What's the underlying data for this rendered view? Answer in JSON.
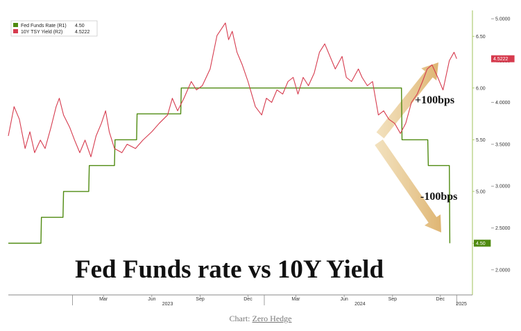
{
  "chart_data": {
    "type": "line",
    "title": "Fed Funds rate vs 10Y Yield",
    "x_ticks": [
      "Mar",
      "Jun",
      "Sep",
      "Dec",
      "Mar",
      "Jun",
      "Sep",
      "Dec"
    ],
    "x_years": [
      "2023",
      "2024",
      "2025"
    ],
    "y_left_ticks": [
      "6.50",
      "6.00",
      "5.50",
      "5.00",
      "4.50"
    ],
    "y_right_ticks": [
      "5.0000",
      "4.5000",
      "4.0000",
      "3.5000",
      "3.0000",
      "2.5000",
      "2.0000"
    ],
    "y_left_range": [
      4.0,
      6.75
    ],
    "y_right_range": [
      1.7,
      5.1
    ],
    "x_range": [
      "2022-09-01",
      "2025-01-31"
    ],
    "series": [
      {
        "name": "Fed Funds Rate (R1)",
        "last_value": "4.50",
        "color": "#4f8a10",
        "axis": "left",
        "points": [
          [
            "2022-09-01",
            4.5
          ],
          [
            "2022-11-02",
            4.5
          ],
          [
            "2022-11-03",
            4.75
          ],
          [
            "2022-12-14",
            4.75
          ],
          [
            "2022-12-15",
            5.0
          ],
          [
            "2023-02-01",
            5.0
          ],
          [
            "2023-02-02",
            5.25
          ],
          [
            "2023-03-22",
            5.25
          ],
          [
            "2023-03-23",
            5.5
          ],
          [
            "2023-05-03",
            5.5
          ],
          [
            "2023-05-04",
            5.75
          ],
          [
            "2023-07-26",
            5.75
          ],
          [
            "2023-07-27",
            6.0
          ],
          [
            "2024-09-18",
            6.0
          ],
          [
            "2024-09-19",
            5.5
          ],
          [
            "2024-11-07",
            5.5
          ],
          [
            "2024-11-08",
            5.25
          ],
          [
            "2024-12-18",
            5.25
          ],
          [
            "2024-12-19",
            4.5
          ]
        ]
      },
      {
        "name": "10Y TSY Yield (R2)",
        "last_value": "4.5222",
        "color": "#d63b4e",
        "axis": "right",
        "points": [
          [
            "2022-09-01",
            3.6
          ],
          [
            "2022-09-12",
            3.95
          ],
          [
            "2022-09-22",
            3.8
          ],
          [
            "2022-10-03",
            3.45
          ],
          [
            "2022-10-12",
            3.65
          ],
          [
            "2022-10-21",
            3.4
          ],
          [
            "2022-11-01",
            3.55
          ],
          [
            "2022-11-10",
            3.45
          ],
          [
            "2022-11-21",
            3.7
          ],
          [
            "2022-12-01",
            3.95
          ],
          [
            "2022-12-07",
            4.05
          ],
          [
            "2022-12-15",
            3.85
          ],
          [
            "2022-12-27",
            3.7
          ],
          [
            "2023-01-05",
            3.55
          ],
          [
            "2023-01-15",
            3.4
          ],
          [
            "2023-01-25",
            3.55
          ],
          [
            "2023-02-05",
            3.35
          ],
          [
            "2023-02-15",
            3.6
          ],
          [
            "2023-02-25",
            3.75
          ],
          [
            "2023-03-05",
            3.9
          ],
          [
            "2023-03-12",
            3.65
          ],
          [
            "2023-03-22",
            3.45
          ],
          [
            "2023-04-05",
            3.4
          ],
          [
            "2023-04-15",
            3.5
          ],
          [
            "2023-05-01",
            3.45
          ],
          [
            "2023-05-15",
            3.55
          ],
          [
            "2023-06-01",
            3.65
          ],
          [
            "2023-06-15",
            3.75
          ],
          [
            "2023-07-01",
            3.85
          ],
          [
            "2023-07-10",
            4.05
          ],
          [
            "2023-07-20",
            3.9
          ],
          [
            "2023-08-01",
            4.05
          ],
          [
            "2023-08-15",
            4.25
          ],
          [
            "2023-08-25",
            4.15
          ],
          [
            "2023-09-05",
            4.2
          ],
          [
            "2023-09-20",
            4.4
          ],
          [
            "2023-10-03",
            4.8
          ],
          [
            "2023-10-19",
            4.95
          ],
          [
            "2023-10-25",
            4.75
          ],
          [
            "2023-11-01",
            4.85
          ],
          [
            "2023-11-10",
            4.6
          ],
          [
            "2023-11-20",
            4.45
          ],
          [
            "2023-12-01",
            4.25
          ],
          [
            "2023-12-15",
            3.95
          ],
          [
            "2023-12-27",
            3.85
          ],
          [
            "2024-01-05",
            4.05
          ],
          [
            "2024-01-15",
            4.0
          ],
          [
            "2024-01-25",
            4.15
          ],
          [
            "2024-02-05",
            4.1
          ],
          [
            "2024-02-15",
            4.25
          ],
          [
            "2024-02-25",
            4.3
          ],
          [
            "2024-03-05",
            4.1
          ],
          [
            "2024-03-15",
            4.3
          ],
          [
            "2024-03-25",
            4.2
          ],
          [
            "2024-04-05",
            4.35
          ],
          [
            "2024-04-15",
            4.6
          ],
          [
            "2024-04-25",
            4.7
          ],
          [
            "2024-05-05",
            4.55
          ],
          [
            "2024-05-15",
            4.4
          ],
          [
            "2024-05-28",
            4.55
          ],
          [
            "2024-06-05",
            4.3
          ],
          [
            "2024-06-15",
            4.25
          ],
          [
            "2024-06-28",
            4.4
          ],
          [
            "2024-07-05",
            4.3
          ],
          [
            "2024-07-15",
            4.2
          ],
          [
            "2024-07-25",
            4.25
          ],
          [
            "2024-08-05",
            3.85
          ],
          [
            "2024-08-15",
            3.9
          ],
          [
            "2024-08-25",
            3.8
          ],
          [
            "2024-09-05",
            3.75
          ],
          [
            "2024-09-16",
            3.63
          ],
          [
            "2024-09-26",
            3.75
          ],
          [
            "2024-10-07",
            4.0
          ],
          [
            "2024-10-18",
            4.1
          ],
          [
            "2024-10-28",
            4.25
          ],
          [
            "2024-11-06",
            4.4
          ],
          [
            "2024-11-15",
            4.45
          ],
          [
            "2024-11-26",
            4.3
          ],
          [
            "2024-12-06",
            4.15
          ],
          [
            "2024-12-18",
            4.5
          ],
          [
            "2024-12-27",
            4.6
          ],
          [
            "2025-01-01",
            4.5222
          ]
        ]
      }
    ],
    "annotations": [
      "+100bps",
      "-100bps"
    ],
    "legend_position": "top-left",
    "grid": false
  },
  "caption": {
    "prefix": "Chart: ",
    "link": "Zero Hedge"
  }
}
